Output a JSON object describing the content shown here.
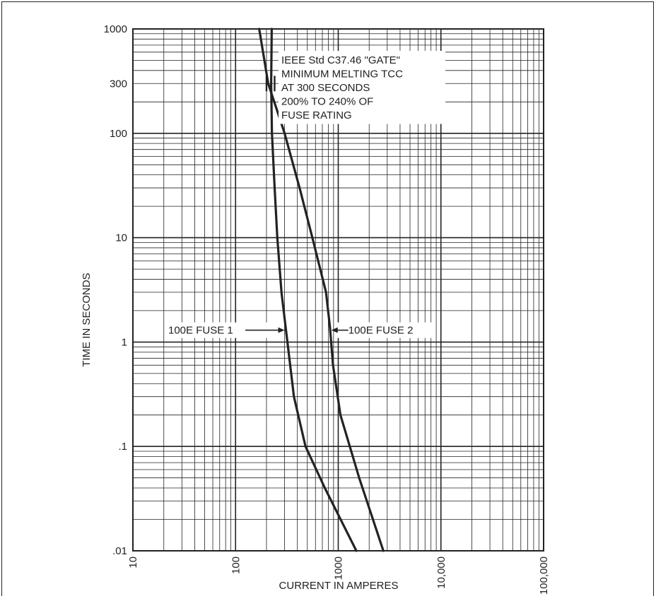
{
  "chart_data": {
    "type": "line",
    "title": "",
    "xlabel": "CURRENT IN AMPERES",
    "ylabel": "TIME IN SECONDS",
    "x_scale": "log",
    "y_scale": "log",
    "xlim": [
      10,
      100000
    ],
    "ylim": [
      0.01,
      1000
    ],
    "x_ticks": [
      {
        "value": 10,
        "label": "10"
      },
      {
        "value": 100,
        "label": "100"
      },
      {
        "value": 1000,
        "label": "1000"
      },
      {
        "value": 10000,
        "label": "10,000"
      },
      {
        "value": 100000,
        "label": "100,000"
      }
    ],
    "y_ticks": [
      {
        "value": 1000,
        "label": "1000"
      },
      {
        "value": 300,
        "label": "300"
      },
      {
        "value": 100,
        "label": "100"
      },
      {
        "value": 10,
        "label": "10"
      },
      {
        "value": 1,
        "label": "1"
      },
      {
        "value": 0.1,
        "label": ".1"
      },
      {
        "value": 0.01,
        "label": ".01"
      }
    ],
    "grid": true,
    "series": [
      {
        "name": "100E FUSE 1",
        "points": [
          [
            225,
            1000
          ],
          [
            222,
            300
          ],
          [
            226,
            100
          ],
          [
            240,
            30
          ],
          [
            255,
            10
          ],
          [
            280,
            3
          ],
          [
            320,
            1
          ],
          [
            370,
            0.3
          ],
          [
            480,
            0.1
          ],
          [
            740,
            0.04
          ],
          [
            1500,
            0.01
          ]
        ]
      },
      {
        "name": "100E FUSE 2",
        "points": [
          [
            170,
            1000
          ],
          [
            208,
            300
          ],
          [
            300,
            100
          ],
          [
            420,
            30
          ],
          [
            560,
            10
          ],
          [
            760,
            3
          ],
          [
            830,
            1.4
          ],
          [
            890,
            0.6
          ],
          [
            1050,
            0.2
          ],
          [
            1600,
            0.05
          ],
          [
            2750,
            0.01
          ]
        ]
      }
    ],
    "annotations": {
      "gate_lines": [
        "IEEE Std C37.46 \"GATE\"",
        "MINIMUM MELTING TCC",
        "AT 300 SECONDS",
        " 200% TO 240% OF",
        "FUSE RATING"
      ],
      "gate_markers": [
        {
          "x": 200,
          "y": 300
        },
        {
          "x": 240,
          "y": 300
        }
      ],
      "fuse1_label": "100E FUSE 1",
      "fuse1_arrow_point": {
        "x": 300,
        "y": 1.3
      },
      "fuse2_label": "100E FUSE 2",
      "fuse2_arrow_point": {
        "x": 830,
        "y": 1.3
      }
    }
  }
}
